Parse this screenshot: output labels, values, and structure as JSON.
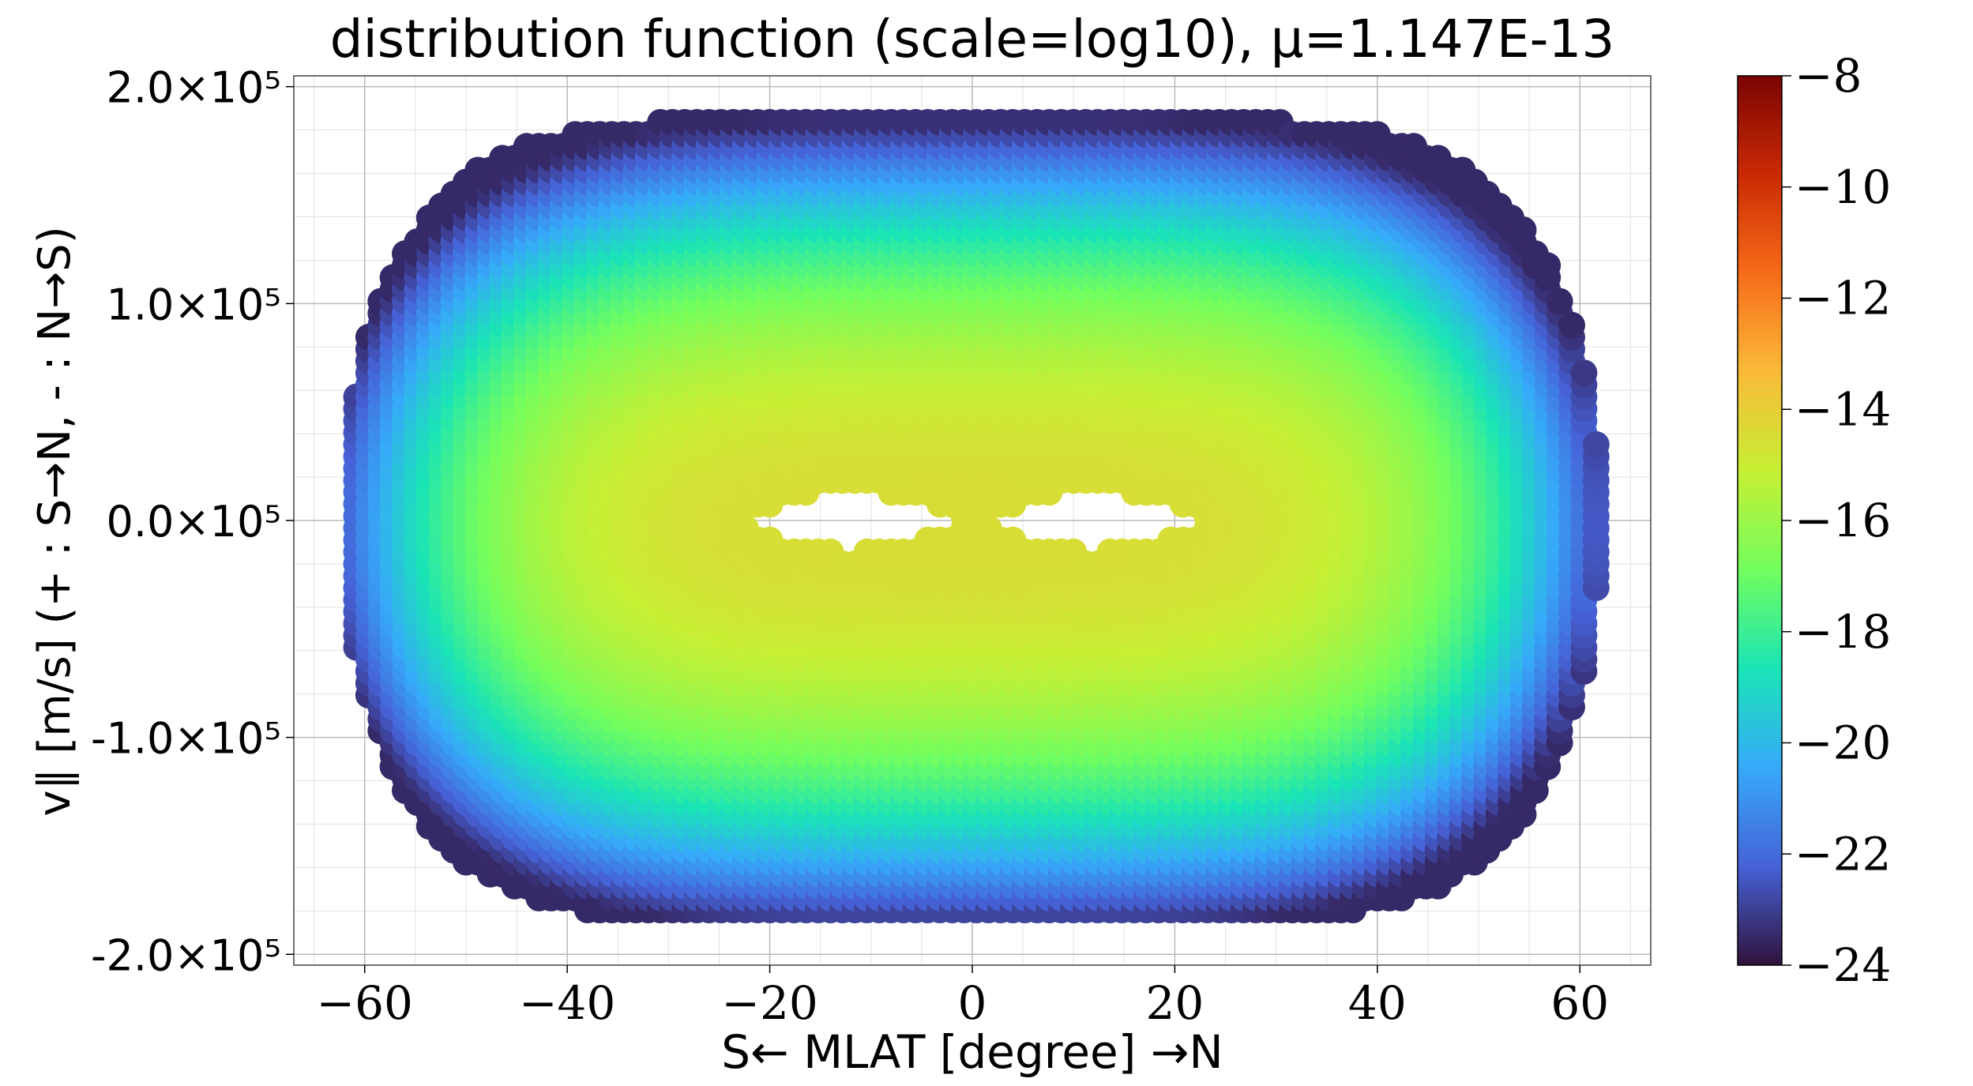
{
  "chart_data": {
    "type": "scatter",
    "title": "distribution function (scale=log10), μ=1.147E-13",
    "xlabel": "S← MLAT [degree] →N",
    "ylabel": "v∥ [m/s] (+ : S→N, - : N→S)",
    "xlim": [
      -67,
      67
    ],
    "ylim": [
      -205000,
      205000
    ],
    "x_ticks": [
      -60,
      -40,
      -20,
      0,
      20,
      40,
      60
    ],
    "x_tick_labels": [
      "−60",
      "−40",
      "−20",
      "0",
      "20",
      "40",
      "60"
    ],
    "y_ticks": [
      -200000,
      -100000,
      0,
      100000,
      200000
    ],
    "y_tick_labels": [
      "-2.0×10⁵",
      "-1.0×10⁵",
      "0.0×10⁵",
      "1.0×10⁵",
      "2.0×10⁵"
    ],
    "grid": true,
    "colorbar": {
      "scale": "log10",
      "range": [
        -24,
        -8
      ],
      "ticks": [
        -8,
        -10,
        -12,
        -14,
        -16,
        -18,
        -20,
        -22,
        -24
      ],
      "tick_labels": [
        "−8",
        "−10",
        "−12",
        "−14",
        "−16",
        "−18",
        "−20",
        "−22",
        "−24"
      ],
      "colormap": [
        "#30123b",
        "#4662d7",
        "#36aaf9",
        "#1ae4b6",
        "#72fe5e",
        "#c7ef34",
        "#faba39",
        "#f66b19",
        "#ca2a04",
        "#7a0403"
      ]
    },
    "distribution": {
      "trapped_region_vmax": 16000,
      "trapped_region_mlat_half_width": 24,
      "max_mlat": 62,
      "max_abs_v": 185000,
      "peak_log10_value": -14.5,
      "edge_log10_value": -23.5
    }
  }
}
